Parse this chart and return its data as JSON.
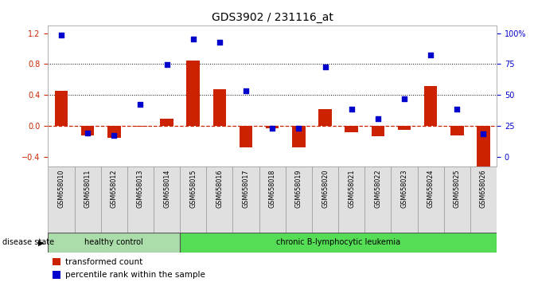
{
  "title": "GDS3902 / 231116_at",
  "samples": [
    "GSM658010",
    "GSM658011",
    "GSM658012",
    "GSM658013",
    "GSM658014",
    "GSM658015",
    "GSM658016",
    "GSM658017",
    "GSM658018",
    "GSM658019",
    "GSM658020",
    "GSM658021",
    "GSM658022",
    "GSM658023",
    "GSM658024",
    "GSM658025",
    "GSM658026"
  ],
  "red_bars": [
    0.46,
    -0.12,
    -0.15,
    -0.01,
    0.1,
    0.85,
    0.48,
    -0.27,
    -0.03,
    -0.27,
    0.22,
    -0.08,
    -0.13,
    -0.05,
    0.52,
    -0.12,
    -0.52
  ],
  "blue_dots": [
    1.18,
    -0.09,
    -0.12,
    0.28,
    0.79,
    1.12,
    1.08,
    0.46,
    -0.03,
    -0.03,
    0.76,
    0.22,
    0.1,
    0.35,
    0.92,
    0.22,
    -0.1
  ],
  "healthy_range": [
    0,
    4
  ],
  "leukemia_range": [
    5,
    16
  ],
  "bar_color": "#cc2200",
  "dot_color": "#0000cc",
  "zero_line_color": "#cc2200",
  "grid_color": "#000000",
  "healthy_color": "#aaddaa",
  "leukemia_color": "#55dd55",
  "bg_color": "#ffffff",
  "ylim": [
    -0.52,
    1.3
  ],
  "yticks_left": [
    -0.4,
    0.0,
    0.4,
    0.8,
    1.2
  ],
  "right_axis_ticks": [
    0,
    25,
    50,
    75,
    100
  ],
  "right_axis_labels": [
    "0",
    "25",
    "50",
    "75",
    "100%"
  ],
  "dotted_lines": [
    0.4,
    0.8
  ],
  "title_fontsize": 10,
  "tick_fontsize": 7,
  "label_fontsize": 7.5
}
